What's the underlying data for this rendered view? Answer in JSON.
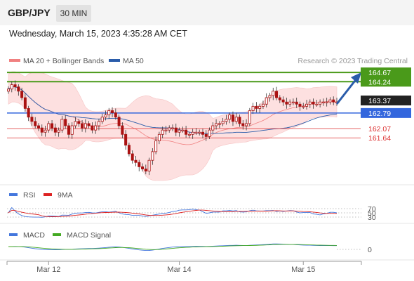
{
  "header": {
    "pair": "GBP/JPY",
    "timeframe": "30 MIN"
  },
  "datetime": "Wednesday, March 15, 2023 4:35:28 AM CET",
  "legend": {
    "ma20": "MA 20 + Bollinger Bands",
    "ma50": "MA 50",
    "credit": "Research © 2023 Trading Central",
    "rsi": "RSI",
    "rsi_ma": "9MA",
    "macd": "MACD",
    "macd_signal": "MACD Signal"
  },
  "colors": {
    "bollinger_fill": "#fde0e0",
    "ma20": "#f08080",
    "ma50": "#2a5caa",
    "resistance": "#4a9a1a",
    "pivot": "#3366dd",
    "support": "#dd3333",
    "candle_up": "#aa1111",
    "candle_down": "#aa1111",
    "arrow": "#2a5caa",
    "rsi": "#4477dd",
    "rsi_ma": "#dd2222",
    "macd": "#4477dd",
    "macd_signal": "#44aa22"
  },
  "chart_data": {
    "type": "candlestick",
    "x_tick_labels": [
      "Mar 12",
      "Mar 14",
      "Mar 15"
    ],
    "price_levels": [
      {
        "value": 164.67,
        "label": "164.67",
        "kind": "resistance"
      },
      {
        "value": 164.24,
        "label": "164.24",
        "kind": "resistance"
      },
      {
        "value": 163.37,
        "label": "163.37",
        "kind": "current"
      },
      {
        "value": 162.79,
        "label": "162.79",
        "kind": "pivot"
      },
      {
        "value": 162.07,
        "label": "162.07",
        "kind": "support"
      },
      {
        "value": 161.64,
        "label": "161.64",
        "kind": "support"
      }
    ],
    "price_range": [
      159.5,
      164.9
    ],
    "closes": [
      163.9,
      164.1,
      164.0,
      163.8,
      163.5,
      163.0,
      162.6,
      162.4,
      162.2,
      162.1,
      161.9,
      162.0,
      162.3,
      162.1,
      161.9,
      162.0,
      162.5,
      162.2,
      161.8,
      162.2,
      162.4,
      162.3,
      162.1,
      162.3,
      162.2,
      162.0,
      162.2,
      162.4,
      162.6,
      162.7,
      162.9,
      162.8,
      162.6,
      162.2,
      161.8,
      161.3,
      160.9,
      160.6,
      160.5,
      160.3,
      160.2,
      160.1,
      160.6,
      161.0,
      161.5,
      161.8,
      162.0,
      162.0,
      162.1,
      162.1,
      161.9,
      162.0,
      162.0,
      161.8,
      161.8,
      161.9,
      161.9,
      161.9,
      161.8,
      161.7,
      162.0,
      162.2,
      162.3,
      162.3,
      162.4,
      162.5,
      162.7,
      162.4,
      162.6,
      162.3,
      162.2,
      162.3,
      162.9,
      163.1,
      163.0,
      163.1,
      163.2,
      163.5,
      163.6,
      163.8,
      163.5,
      163.4,
      163.3,
      163.2,
      163.3,
      163.3,
      163.2,
      163.1,
      163.1,
      163.2,
      163.3,
      163.2,
      163.2,
      163.3,
      163.3,
      163.3,
      163.4,
      163.3,
      163.3
    ],
    "rsi_axis": [
      70,
      50,
      30
    ],
    "macd_axis": [
      0
    ]
  }
}
